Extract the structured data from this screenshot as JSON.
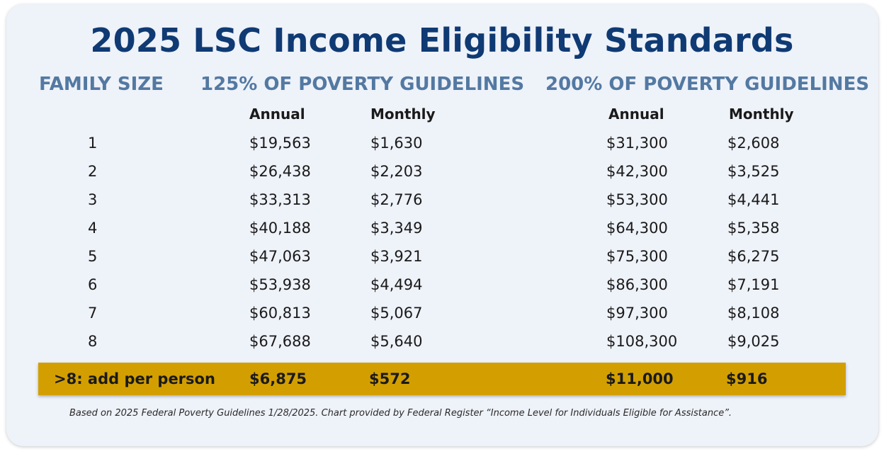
{
  "title": "2025 LSC Income Eligibility Standards",
  "headers": {
    "family_size": "FAMILY SIZE",
    "group_125": "125% OF POVERTY GUIDELINES",
    "group_200": "200% OF POVERTY GUIDELINES",
    "annual": "Annual",
    "monthly": "Monthly"
  },
  "rows": [
    {
      "size": "1",
      "annual_125": "$19,563",
      "monthly_125": "$1,630",
      "annual_200": "$31,300",
      "monthly_200": "$2,608"
    },
    {
      "size": "2",
      "annual_125": "$26,438",
      "monthly_125": "$2,203",
      "annual_200": "$42,300",
      "monthly_200": "$3,525"
    },
    {
      "size": "3",
      "annual_125": "$33,313",
      "monthly_125": "$2,776",
      "annual_200": "$53,300",
      "monthly_200": "$4,441"
    },
    {
      "size": "4",
      "annual_125": "$40,188",
      "monthly_125": "$3,349",
      "annual_200": "$64,300",
      "monthly_200": "$5,358"
    },
    {
      "size": "5",
      "annual_125": "$47,063",
      "monthly_125": "$3,921",
      "annual_200": "$75,300",
      "monthly_200": "$6,275"
    },
    {
      "size": "6",
      "annual_125": "$53,938",
      "monthly_125": "$4,494",
      "annual_200": "$86,300",
      "monthly_200": "$7,191"
    },
    {
      "size": "7",
      "annual_125": "$60,813",
      "monthly_125": "$5,067",
      "annual_200": "$97,300",
      "monthly_200": "$8,108"
    },
    {
      "size": "8",
      "annual_125": "$67,688",
      "monthly_125": "$5,640",
      "annual_200": "$108,300",
      "monthly_200": "$9,025"
    }
  ],
  "extra_person": {
    "label": ">8: add per person",
    "annual_125": "$6,875",
    "monthly_125": "$572",
    "annual_200": "$11,000",
    "monthly_200": "$916"
  },
  "footnote": "Based on 2025 Federal Poverty Guidelines 1/28/2025.  Chart provided by Federal Register “Income Level for Individuals Eligible for Assistance”.",
  "colors": {
    "title": "#0f3a73",
    "section_header": "#5379a2",
    "highlight_bar": "#d39f00",
    "card_background": "#eef2f9"
  }
}
